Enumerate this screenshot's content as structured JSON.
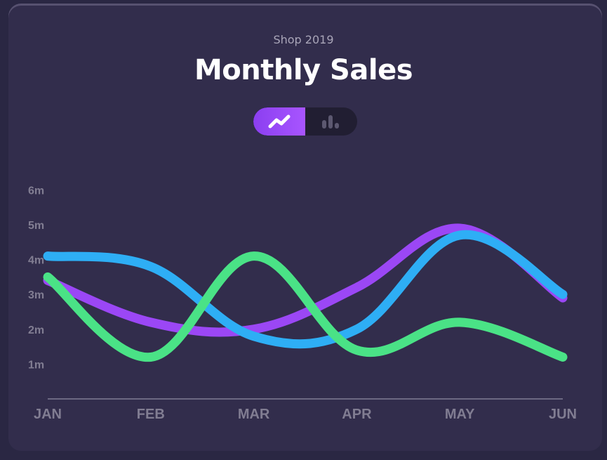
{
  "header": {
    "subtitle": "Shop 2019",
    "title": "Monthly Sales"
  },
  "toggle": {
    "options": [
      {
        "icon": "line-chart-icon",
        "active": true
      },
      {
        "icon": "bar-chart-icon",
        "active": false
      }
    ]
  },
  "colors": {
    "background": "#2a2743",
    "card": "#322d4c",
    "accent": "#9b47f5",
    "axis": "#817d92"
  },
  "chart_data": {
    "type": "line",
    "title": "Monthly Sales",
    "subtitle": "Shop 2019",
    "categories": [
      "JAN",
      "FEB",
      "MAR",
      "APR",
      "MAY",
      "JUN"
    ],
    "ylim": [
      0,
      6
    ],
    "yticks": [
      1,
      2,
      3,
      4,
      5,
      6
    ],
    "ytick_labels": [
      "1m",
      "2m",
      "3m",
      "4m",
      "5m",
      "6m"
    ],
    "grid": false,
    "legend": "none",
    "series": [
      {
        "color": "#9b47f5",
        "values": [
          3.4,
          2.2,
          2.0,
          3.2,
          4.9,
          2.9
        ]
      },
      {
        "color": "#2eaef5",
        "values": [
          4.1,
          3.8,
          1.8,
          2.0,
          4.7,
          3.0
        ]
      },
      {
        "color": "#4ae286",
        "values": [
          3.5,
          1.2,
          4.1,
          1.4,
          2.2,
          1.2
        ]
      }
    ]
  }
}
